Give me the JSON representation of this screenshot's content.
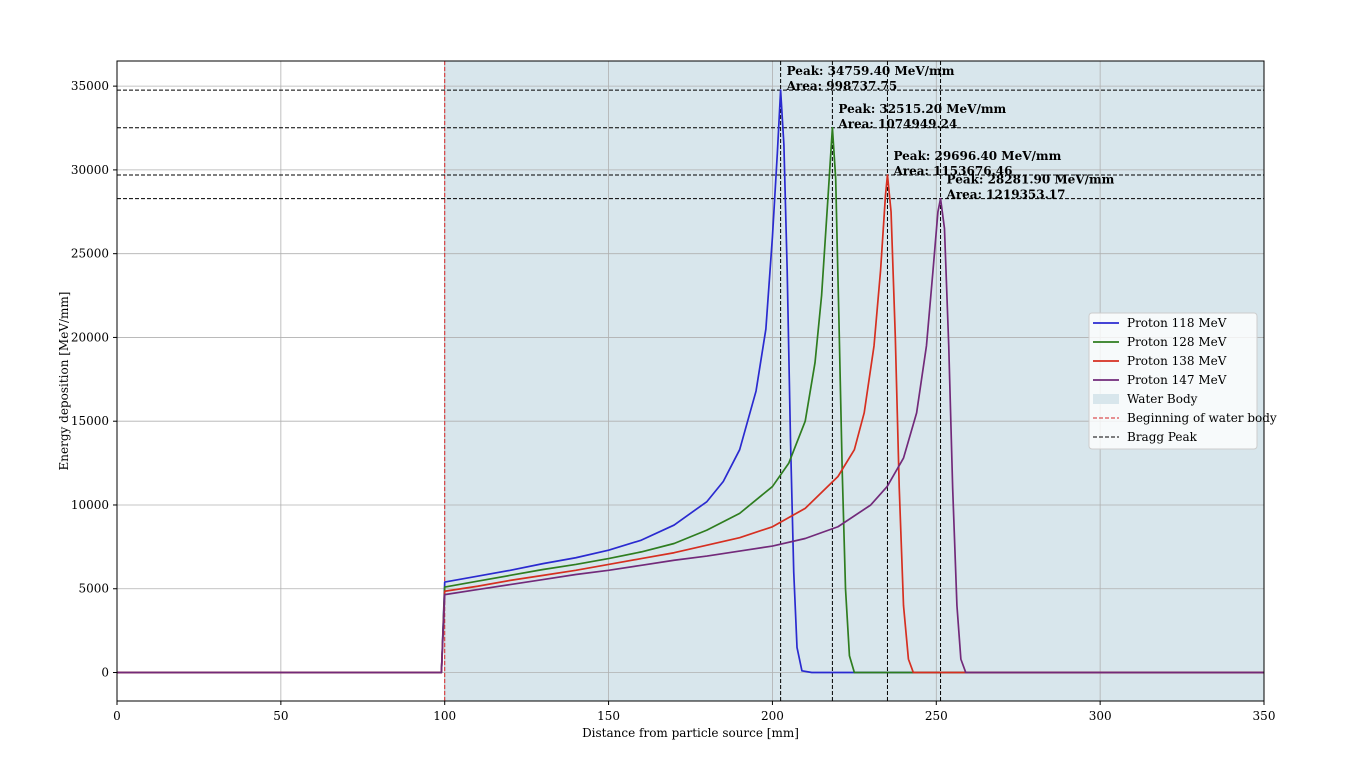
{
  "chart_data": {
    "type": "line",
    "title": "",
    "xlabel": "Distance from particle source [mm]",
    "ylabel": "Energy deposition [MeV/mm]",
    "xlim": [
      0,
      350
    ],
    "ylim": [
      -1700,
      36500
    ],
    "xticks": [
      0,
      50,
      100,
      150,
      200,
      250,
      300,
      350
    ],
    "yticks": [
      0,
      5000,
      10000,
      15000,
      20000,
      25000,
      30000,
      35000
    ],
    "grid": true,
    "legend_position": "center-right",
    "water_body": {
      "label": "Water Body",
      "start": 100,
      "end": 350,
      "color": "#d8e6ec"
    },
    "water_start_line": {
      "label": "Beginning of water body",
      "x": 100,
      "color": "#d62728"
    },
    "bragg_peak_label": "Bragg Peak",
    "series": [
      {
        "name": "Proton 118 MeV",
        "color": "#2a2ad0",
        "points": [
          [
            0,
            0
          ],
          [
            99,
            0
          ],
          [
            100,
            5400
          ],
          [
            110,
            5750
          ],
          [
            120,
            6100
          ],
          [
            130,
            6500
          ],
          [
            140,
            6850
          ],
          [
            150,
            7300
          ],
          [
            160,
            7900
          ],
          [
            170,
            8800
          ],
          [
            180,
            10200
          ],
          [
            185,
            11400
          ],
          [
            190,
            13300
          ],
          [
            195,
            16800
          ],
          [
            198,
            20500
          ],
          [
            200,
            26000
          ],
          [
            201.5,
            31000
          ],
          [
            202.5,
            34759.4
          ],
          [
            203.5,
            31500
          ],
          [
            204.5,
            24000
          ],
          [
            205.5,
            14000
          ],
          [
            206.5,
            6000
          ],
          [
            207.5,
            1500
          ],
          [
            209,
            100
          ],
          [
            212,
            0
          ],
          [
            350,
            0
          ]
        ],
        "peak": {
          "x": 202.5,
          "y": 34759.4,
          "peak_label": "Peak: 34759.40 MeV/mm",
          "area_label": "Area: 998737.75"
        }
      },
      {
        "name": "Proton 128 MeV",
        "color": "#2e7d1f",
        "points": [
          [
            0,
            0
          ],
          [
            99,
            0
          ],
          [
            100,
            5100
          ],
          [
            110,
            5450
          ],
          [
            120,
            5800
          ],
          [
            130,
            6150
          ],
          [
            140,
            6450
          ],
          [
            150,
            6800
          ],
          [
            160,
            7200
          ],
          [
            170,
            7700
          ],
          [
            180,
            8500
          ],
          [
            190,
            9500
          ],
          [
            200,
            11100
          ],
          [
            205,
            12500
          ],
          [
            210,
            15000
          ],
          [
            213,
            18500
          ],
          [
            215,
            22500
          ],
          [
            217,
            28500
          ],
          [
            218.3,
            32515.2
          ],
          [
            219.3,
            29500
          ],
          [
            220.3,
            21000
          ],
          [
            221.3,
            12000
          ],
          [
            222.3,
            5000
          ],
          [
            223.5,
            1000
          ],
          [
            225,
            0
          ],
          [
            350,
            0
          ]
        ],
        "peak": {
          "x": 218.3,
          "y": 32515.2,
          "peak_label": "Peak: 32515.20 MeV/mm",
          "area_label": "Area: 1074949.24"
        }
      },
      {
        "name": "Proton 138 MeV",
        "color": "#d62f20",
        "points": [
          [
            0,
            0
          ],
          [
            99,
            0
          ],
          [
            100,
            4850
          ],
          [
            110,
            5150
          ],
          [
            120,
            5500
          ],
          [
            130,
            5800
          ],
          [
            140,
            6100
          ],
          [
            150,
            6450
          ],
          [
            160,
            6800
          ],
          [
            170,
            7150
          ],
          [
            180,
            7600
          ],
          [
            190,
            8050
          ],
          [
            200,
            8700
          ],
          [
            210,
            9800
          ],
          [
            220,
            11700
          ],
          [
            225,
            13300
          ],
          [
            228,
            15500
          ],
          [
            231,
            19500
          ],
          [
            233,
            24000
          ],
          [
            234.5,
            28500
          ],
          [
            235.1,
            29696.4
          ],
          [
            236.2,
            27500
          ],
          [
            237.5,
            20000
          ],
          [
            238.7,
            11000
          ],
          [
            240,
            4000
          ],
          [
            241.5,
            800
          ],
          [
            243,
            0
          ],
          [
            350,
            0
          ]
        ],
        "peak": {
          "x": 235.1,
          "y": 29696.4,
          "peak_label": "Peak: 29696.40 MeV/mm",
          "area_label": "Area: 1153676.46"
        }
      },
      {
        "name": "Proton 147 MeV",
        "color": "#722a7a",
        "points": [
          [
            0,
            0
          ],
          [
            99,
            0
          ],
          [
            100,
            4650
          ],
          [
            110,
            4950
          ],
          [
            120,
            5250
          ],
          [
            130,
            5550
          ],
          [
            140,
            5850
          ],
          [
            150,
            6100
          ],
          [
            160,
            6400
          ],
          [
            170,
            6700
          ],
          [
            180,
            6950
          ],
          [
            190,
            7250
          ],
          [
            200,
            7550
          ],
          [
            210,
            8000
          ],
          [
            220,
            8700
          ],
          [
            230,
            10000
          ],
          [
            235,
            11100
          ],
          [
            240,
            12800
          ],
          [
            244,
            15500
          ],
          [
            247,
            19500
          ],
          [
            249,
            24000
          ],
          [
            250.5,
            27500
          ],
          [
            251.3,
            28281.9
          ],
          [
            252.5,
            26500
          ],
          [
            253.8,
            19500
          ],
          [
            255,
            11000
          ],
          [
            256.3,
            4000
          ],
          [
            257.5,
            800
          ],
          [
            259,
            0
          ],
          [
            350,
            0
          ]
        ],
        "peak": {
          "x": 251.3,
          "y": 28281.9,
          "peak_label": "Peak: 28281.90 MeV/mm",
          "area_label": "Area: 1219353.17"
        }
      }
    ]
  }
}
